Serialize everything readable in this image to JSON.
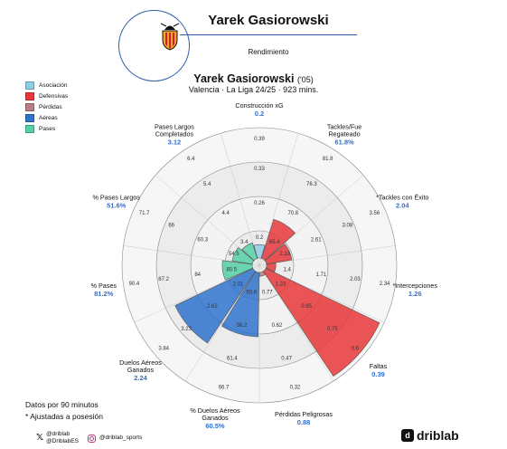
{
  "header": {
    "player_name": "Yarek Gasiorowski",
    "subtitle": "Rendimiento"
  },
  "title": {
    "name": "Yarek Gasiorowski",
    "age": "('05)",
    "subtitle": "Valencia · La Liga 24/25 · 923 mins."
  },
  "legend": [
    {
      "label": "Asociación",
      "color": "#8ecde8"
    },
    {
      "label": "Defensivas",
      "color": "#e8373b"
    },
    {
      "label": "Pérdidas",
      "color": "#b87e84"
    },
    {
      "label": "Aéreas",
      "color": "#2f73cc"
    },
    {
      "label": "Pases",
      "color": "#55d1a8"
    }
  ],
  "footnotes": {
    "per90": "Datos por 90 minutos",
    "adjusted": "* Ajustadas a posesión"
  },
  "social": {
    "x1": "@driblab",
    "x2": "@DriblabES",
    "instagram": "@driblab_sports"
  },
  "brand": "driblab",
  "chart_data": {
    "type": "polar_bar",
    "percentile_rings": [
      0.25,
      0.5,
      0.75,
      1.0
    ],
    "metrics": [
      {
        "label": "Construcción xG",
        "value": "0.2",
        "percentile": 15,
        "category": "Asociación",
        "ring_ticks": [
          "0.2",
          "0.26",
          "0.33",
          "0.39"
        ]
      },
      {
        "label": "Tackles/Fue Regateado",
        "value": "61.8%",
        "percentile": 35,
        "category": "Defensivas",
        "ring_ticks": [
          "65.4",
          "70.8",
          "76.3",
          "81.8"
        ]
      },
      {
        "label": "*Tackles con Éxito",
        "value": "2.04",
        "percentile": 24,
        "category": "Defensivas",
        "ring_ticks": [
          "2.13",
          "2.61",
          "3.08",
          "3.56"
        ]
      },
      {
        "label": "*Intercepciones",
        "value": "1.26",
        "percentile": 12,
        "category": "Defensivas",
        "ring_ticks": [
          "1.4",
          "1.71",
          "2.03",
          "2.34"
        ]
      },
      {
        "label": "Faltas",
        "value": "0.39",
        "percentile": 97,
        "category": "Defensivas",
        "ring_ticks": [
          "1.23",
          "0.95",
          "0.75",
          "0.6"
        ]
      },
      {
        "label": "Pérdidas Peligrosas",
        "value": "0.88",
        "percentile": 8,
        "category": "Pérdidas",
        "ring_ticks": [
          "0.77",
          "0.62",
          "0.47",
          "0.32"
        ]
      },
      {
        "label": "% Duelos Aéreos Ganados",
        "value": "60.5%",
        "percentile": 52,
        "category": "Aéreas",
        "ring_ticks": [
          "50.6",
          "56.2",
          "61.4",
          "66.7"
        ]
      },
      {
        "label": "Duelos Aéreos Ganados",
        "value": "2.24",
        "percentile": 68,
        "category": "Aéreas",
        "ring_ticks": [
          "2.01",
          "2.62",
          "3.23",
          "3.84"
        ]
      },
      {
        "label": "% Pases",
        "value": "81.2%",
        "percentile": 27,
        "category": "Pases",
        "ring_ticks": [
          "80.5",
          "84",
          "87.2",
          "90.4"
        ]
      },
      {
        "label": "% Pases Largos",
        "value": "51.6%",
        "percentile": 20,
        "category": "Pases",
        "ring_ticks": [
          "54.5",
          "60.3",
          "66",
          "71.7"
        ]
      },
      {
        "label": "Pases Largos Completados",
        "value": "3.12",
        "percentile": 17,
        "category": "Pases",
        "ring_ticks": [
          "3.4",
          "4.4",
          "5.4",
          "6.4"
        ]
      }
    ]
  }
}
